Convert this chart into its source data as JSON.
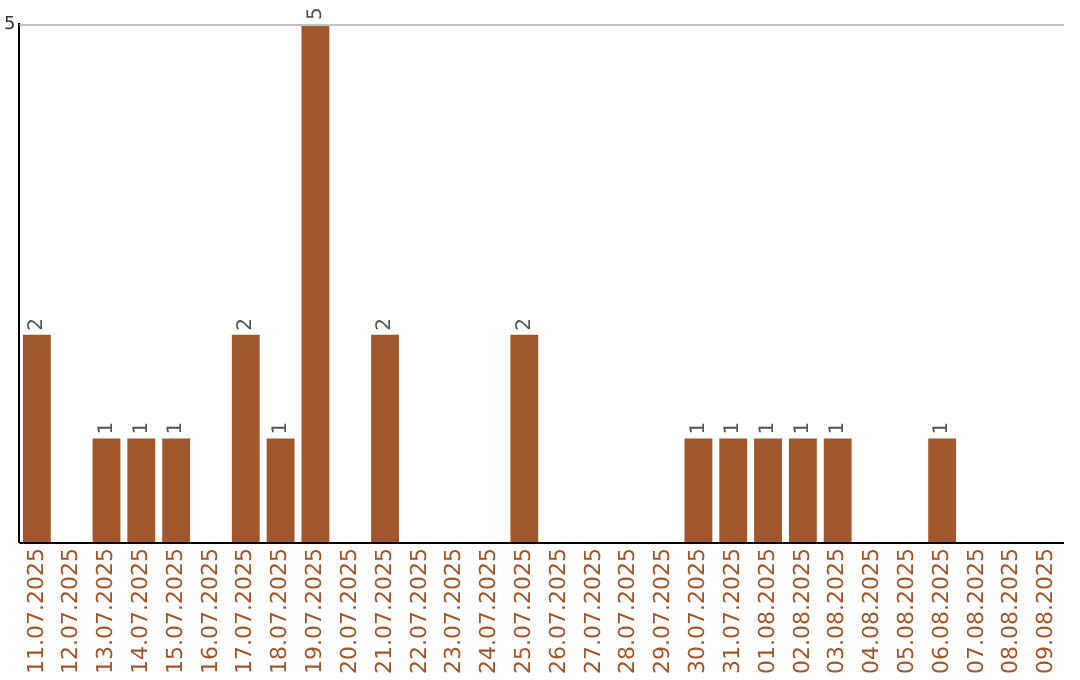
{
  "chart_data": {
    "type": "bar",
    "categories": [
      "11.07.2025",
      "12.07.2025",
      "13.07.2025",
      "14.07.2025",
      "15.07.2025",
      "16.07.2025",
      "17.07.2025",
      "18.07.2025",
      "19.07.2025",
      "20.07.2025",
      "21.07.2025",
      "22.07.2025",
      "23.07.2025",
      "24.07.2025",
      "25.07.2025",
      "26.07.2025",
      "27.07.2025",
      "28.07.2025",
      "29.07.2025",
      "30.07.2025",
      "31.07.2025",
      "01.08.2025",
      "02.08.2025",
      "03.08.2025",
      "04.08.2025",
      "05.08.2025",
      "06.08.2025",
      "07.08.2025",
      "08.08.2025",
      "09.08.2025"
    ],
    "values": [
      2,
      0,
      1,
      1,
      1,
      0,
      2,
      1,
      5,
      0,
      2,
      0,
      0,
      0,
      2,
      0,
      0,
      0,
      0,
      1,
      1,
      1,
      1,
      1,
      0,
      0,
      1,
      0,
      0,
      0
    ],
    "value_labels": [
      "2",
      null,
      "1",
      "1",
      "1",
      null,
      "2",
      "1",
      "5",
      null,
      "2",
      null,
      null,
      null,
      "2",
      null,
      null,
      null,
      null,
      "1",
      "1",
      "1",
      "1",
      "1",
      null,
      null,
      "1",
      null,
      null,
      null
    ],
    "color": "#a0572b",
    "ylim": [
      0,
      5
    ],
    "yticks": [
      {
        "value": 0,
        "label": null
      },
      5
    ],
    "grid": "y",
    "legend": false
  }
}
